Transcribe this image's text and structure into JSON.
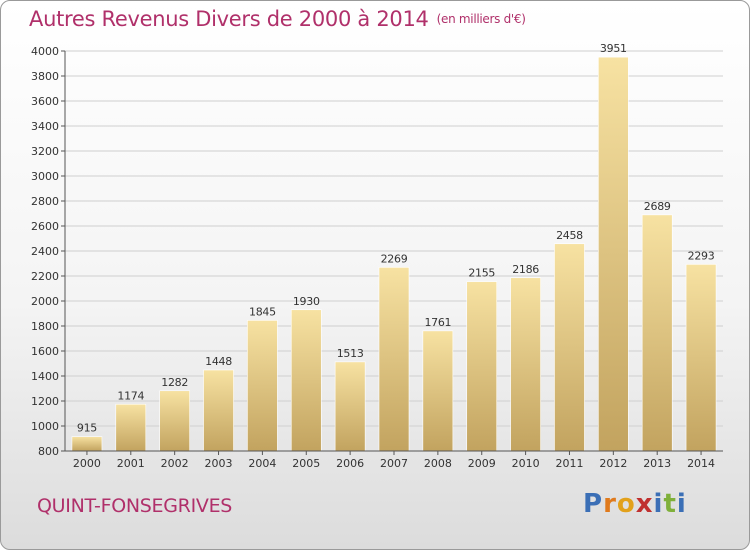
{
  "header": {
    "title": "Autres Revenus Divers de 2000 à 2014",
    "unit": "(en milliers d'€)"
  },
  "footer": {
    "town": "QUINT-FONSEGRIVES",
    "logo_text": "Proxiti",
    "logo_colors": [
      "#3b6fb6",
      "#e07a1c",
      "#e2a11b",
      "#c0302f",
      "#3b6fb6",
      "#7fb03a",
      "#3b6fb6"
    ]
  },
  "chart_data": {
    "type": "bar",
    "title": "Autres Revenus Divers de 2000 à 2014",
    "subtitle": "(en milliers d'€)",
    "xlabel": "",
    "ylabel": "",
    "categories": [
      "2000",
      "2001",
      "2002",
      "2003",
      "2004",
      "2005",
      "2006",
      "2007",
      "2008",
      "2009",
      "2010",
      "2011",
      "2012",
      "2013",
      "2014"
    ],
    "values": [
      915,
      1174,
      1282,
      1448,
      1845,
      1930,
      1513,
      2269,
      1761,
      2155,
      2186,
      2458,
      3951,
      2689,
      2293
    ],
    "ylim": [
      800,
      4000
    ],
    "yticks": [
      800,
      1000,
      1200,
      1400,
      1600,
      1800,
      2000,
      2200,
      2400,
      2600,
      2800,
      3000,
      3200,
      3400,
      3600,
      3800,
      4000
    ],
    "grid": true,
    "data_labels": true,
    "colors": {
      "bar_light": "#f7e2a2",
      "bar_dark": "#c2a35f",
      "grid": "#cfcfcf",
      "axis": "#555555"
    }
  }
}
